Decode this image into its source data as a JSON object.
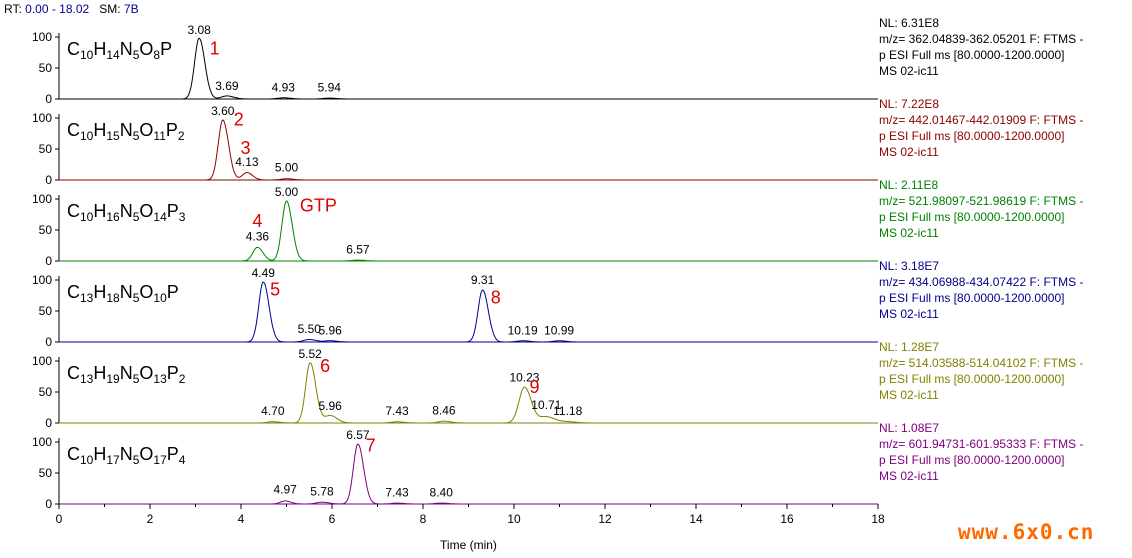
{
  "header": {
    "rt_label": "RT:",
    "rt_range": "0.00 - 18.02",
    "sm_label": "SM:",
    "sm_value": "7B"
  },
  "chart_data": {
    "type": "line",
    "xlabel": "Time (min)",
    "xlim": [
      0,
      18
    ],
    "xticks": [
      0,
      2,
      4,
      6,
      8,
      10,
      12,
      14,
      16,
      18
    ],
    "ylim": [
      0,
      100
    ],
    "yticks": [
      0,
      50,
      100
    ],
    "panels": [
      {
        "formula": [
          [
            "C",
            "10"
          ],
          [
            "H",
            "14"
          ],
          [
            "N",
            "5"
          ],
          [
            "O",
            "8"
          ],
          [
            "P",
            ""
          ]
        ],
        "color": "#000000",
        "nl": "NL: 6.31E8",
        "mz": "m/z= 362.04839-362.05201 F: FTMS -",
        "scan": "p ESI Full ms [80.0000-1200.0000]",
        "file": "MS 02-ic11",
        "peaks": [
          {
            "rt": 3.08,
            "height": 98,
            "width": 0.1
          },
          {
            "rt": 3.69,
            "height": 5,
            "width": 0.12
          },
          {
            "rt": 4.93,
            "height": 2,
            "width": 0.12
          },
          {
            "rt": 5.94,
            "height": 1.5,
            "width": 0.12
          }
        ],
        "rt_labels": [
          {
            "rt": 3.08,
            "text": "3.08",
            "y": 100
          },
          {
            "rt": 3.69,
            "text": "3.69",
            "y": 10
          },
          {
            "rt": 4.93,
            "text": "4.93",
            "y": 7
          },
          {
            "rt": 5.94,
            "text": "5.94",
            "y": 7
          }
        ],
        "peak_ids": [
          {
            "rt": 3.42,
            "y": 72,
            "text": "1"
          }
        ]
      },
      {
        "formula": [
          [
            "C",
            "10"
          ],
          [
            "H",
            "15"
          ],
          [
            "N",
            "5"
          ],
          [
            "O",
            "11"
          ],
          [
            "P",
            "2"
          ]
        ],
        "color": "#8b0000",
        "nl": "NL: 7.22E8",
        "mz": "m/z= 442.01467-442.01909 F: FTMS -",
        "scan": "p ESI Full ms [80.0000-1200.0000]",
        "file": "MS 02-ic11",
        "peaks": [
          {
            "rt": 3.6,
            "height": 97,
            "width": 0.1
          },
          {
            "rt": 4.13,
            "height": 12,
            "width": 0.1
          },
          {
            "rt": 5.0,
            "height": 2,
            "width": 0.12
          }
        ],
        "rt_labels": [
          {
            "rt": 3.6,
            "text": "3.60",
            "y": 100
          },
          {
            "rt": 4.13,
            "text": "4.13",
            "y": 18
          },
          {
            "rt": 5.0,
            "text": "5.00",
            "y": 9
          }
        ],
        "peak_ids": [
          {
            "rt": 3.95,
            "y": 88,
            "text": "2"
          },
          {
            "rt": 4.1,
            "y": 42,
            "text": "3"
          }
        ]
      },
      {
        "formula": [
          [
            "C",
            "10"
          ],
          [
            "H",
            "16"
          ],
          [
            "N",
            "5"
          ],
          [
            "O",
            "14"
          ],
          [
            "P",
            "3"
          ]
        ],
        "color": "#008000",
        "nl": "NL: 2.11E8",
        "mz": "m/z= 521.98097-521.98619 F: FTMS -",
        "scan": "p ESI Full ms [80.0000-1200.0000]",
        "file": "MS 02-ic11",
        "peaks": [
          {
            "rt": 4.36,
            "height": 22,
            "width": 0.1
          },
          {
            "rt": 5.0,
            "height": 97,
            "width": 0.1
          },
          {
            "rt": 6.57,
            "height": 1.5,
            "width": 0.12
          }
        ],
        "rt_labels": [
          {
            "rt": 4.36,
            "text": "4.36",
            "y": 28
          },
          {
            "rt": 5.0,
            "text": "5.00",
            "y": 100
          },
          {
            "rt": 6.57,
            "text": "6.57",
            "y": 7
          }
        ],
        "peak_ids": [
          {
            "rt": 4.36,
            "y": 55,
            "text": "4"
          },
          {
            "rt": 5.7,
            "y": 80,
            "text": "GTP"
          }
        ]
      },
      {
        "formula": [
          [
            "C",
            "13"
          ],
          [
            "H",
            "18"
          ],
          [
            "N",
            "5"
          ],
          [
            "O",
            "10"
          ],
          [
            "P",
            ""
          ]
        ],
        "color": "#00008b",
        "nl": "NL: 3.18E7",
        "mz": "m/z= 434.06988-434.07422 F: FTMS -",
        "scan": "p ESI Full ms [80.0000-1200.0000]",
        "file": "MS 02-ic11",
        "peaks": [
          {
            "rt": 4.49,
            "height": 97,
            "width": 0.1
          },
          {
            "rt": 5.5,
            "height": 4,
            "width": 0.12
          },
          {
            "rt": 5.96,
            "height": 2,
            "width": 0.12
          },
          {
            "rt": 9.31,
            "height": 84,
            "width": 0.1
          },
          {
            "rt": 10.19,
            "height": 2,
            "width": 0.12
          },
          {
            "rt": 10.99,
            "height": 2,
            "width": 0.12
          }
        ],
        "rt_labels": [
          {
            "rt": 4.49,
            "text": "4.49",
            "y": 100
          },
          {
            "rt": 5.5,
            "text": "5.50",
            "y": 10
          },
          {
            "rt": 5.96,
            "text": "5.96",
            "y": 7
          },
          {
            "rt": 9.31,
            "text": "9.31",
            "y": 89
          },
          {
            "rt": 10.19,
            "text": "10.19",
            "y": 7
          },
          {
            "rt": 10.99,
            "text": "10.99",
            "y": 7
          }
        ],
        "peak_ids": [
          {
            "rt": 4.75,
            "y": 75,
            "text": "5"
          },
          {
            "rt": 9.6,
            "y": 62,
            "text": "8"
          }
        ]
      },
      {
        "formula": [
          [
            "C",
            "13"
          ],
          [
            "H",
            "19"
          ],
          [
            "N",
            "5"
          ],
          [
            "O",
            "13"
          ],
          [
            "P",
            "2"
          ]
        ],
        "color": "#808000",
        "nl": "NL: 1.28E7",
        "mz": "m/z= 514.03588-514.04102 F: FTMS -",
        "scan": "p ESI Full ms [80.0000-1200.0000]",
        "file": "MS 02-ic11",
        "peaks": [
          {
            "rt": 4.7,
            "height": 2,
            "width": 0.12
          },
          {
            "rt": 5.52,
            "height": 97,
            "width": 0.1
          },
          {
            "rt": 5.96,
            "height": 12,
            "width": 0.12
          },
          {
            "rt": 7.43,
            "height": 2,
            "width": 0.12
          },
          {
            "rt": 8.46,
            "height": 3,
            "width": 0.12
          },
          {
            "rt": 10.23,
            "height": 58,
            "width": 0.12
          },
          {
            "rt": 10.71,
            "height": 10,
            "width": 0.15
          },
          {
            "rt": 11.18,
            "height": 2,
            "width": 0.15
          }
        ],
        "rt_labels": [
          {
            "rt": 4.7,
            "text": "4.70",
            "y": 8
          },
          {
            "rt": 5.52,
            "text": "5.52",
            "y": 100
          },
          {
            "rt": 5.96,
            "text": "5.96",
            "y": 16
          },
          {
            "rt": 7.43,
            "text": "7.43",
            "y": 8
          },
          {
            "rt": 8.46,
            "text": "8.46",
            "y": 9
          },
          {
            "rt": 10.23,
            "text": "10.23",
            "y": 62
          },
          {
            "rt": 10.71,
            "text": "10.71",
            "y": 18
          },
          {
            "rt": 11.18,
            "text": "11.18",
            "y": 8
          }
        ],
        "peak_ids": [
          {
            "rt": 5.85,
            "y": 82,
            "text": "6"
          },
          {
            "rt": 10.45,
            "y": 48,
            "text": "9"
          }
        ]
      },
      {
        "formula": [
          [
            "C",
            "10"
          ],
          [
            "H",
            "17"
          ],
          [
            "N",
            "5"
          ],
          [
            "O",
            "17"
          ],
          [
            "P",
            "4"
          ]
        ],
        "color": "#800080",
        "nl": "NL: 1.08E7",
        "mz": "m/z= 601.94731-601.95333 F: FTMS -",
        "scan": "p ESI Full ms [80.0000-1200.0000]",
        "file": "MS 02-ic11",
        "peaks": [
          {
            "rt": 4.97,
            "height": 5,
            "width": 0.1
          },
          {
            "rt": 5.78,
            "height": 3,
            "width": 0.12
          },
          {
            "rt": 6.57,
            "height": 97,
            "width": 0.1
          },
          {
            "rt": 7.43,
            "height": 1.5,
            "width": 0.12
          },
          {
            "rt": 8.4,
            "height": 1.5,
            "width": 0.12
          }
        ],
        "rt_labels": [
          {
            "rt": 4.97,
            "text": "4.97",
            "y": 12
          },
          {
            "rt": 5.78,
            "text": "5.78",
            "y": 9
          },
          {
            "rt": 6.57,
            "text": "6.57",
            "y": 100
          },
          {
            "rt": 7.43,
            "text": "7.43",
            "y": 7
          },
          {
            "rt": 8.4,
            "text": "8.40",
            "y": 7
          }
        ],
        "peak_ids": [
          {
            "rt": 6.85,
            "y": 85,
            "text": "7"
          }
        ]
      }
    ]
  },
  "watermark": "www.6x0.cn"
}
